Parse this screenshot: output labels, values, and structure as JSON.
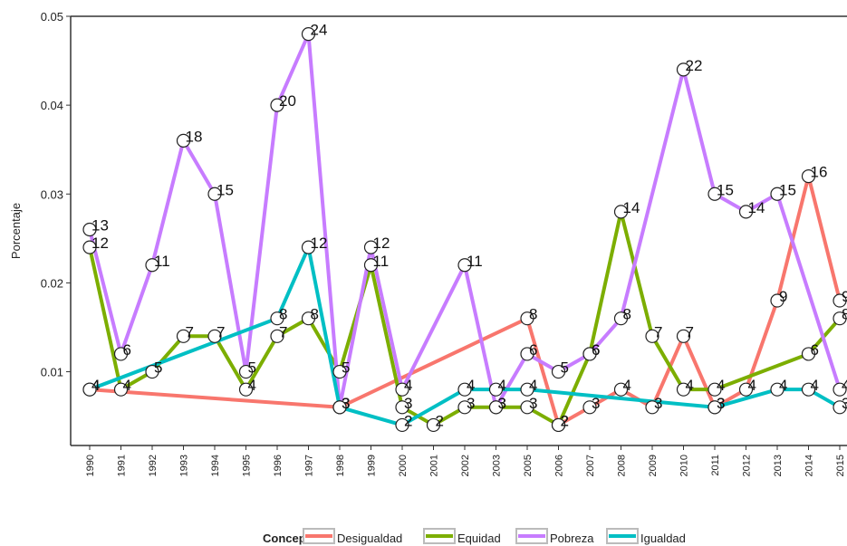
{
  "chart_data": {
    "type": "line",
    "y_label": "Porcentaje",
    "legend_title": "Concepto",
    "categories": [
      "1990",
      "1991",
      "1992",
      "1993",
      "1994",
      "1995",
      "1996",
      "1997",
      "1998",
      "1999",
      "2000",
      "2001",
      "2002",
      "2003",
      "2005",
      "2006",
      "2007",
      "2008",
      "2009",
      "2010",
      "2011",
      "2012",
      "2013",
      "2014",
      "2015"
    ],
    "ylim": [
      0.0017,
      0.05
    ],
    "yticks": [
      0.01,
      0.02,
      0.03,
      0.04,
      0.05
    ],
    "series": [
      {
        "name": "Desigualdad",
        "color": "#f8766d",
        "x": [
          "1990",
          "1998",
          "2005",
          "2006",
          "2007",
          "2008",
          "2009",
          "2010",
          "2011",
          "2012",
          "2013",
          "2014",
          "2015"
        ],
        "values": [
          0.008,
          0.006,
          0.016,
          0.004,
          0.006,
          0.008,
          0.006,
          0.014,
          0.006,
          0.008,
          0.018,
          0.032,
          0.018
        ],
        "counts": [
          4,
          3,
          8,
          2,
          3,
          4,
          3,
          7,
          3,
          4,
          9,
          16,
          9
        ]
      },
      {
        "name": "Equidad",
        "color": "#7cae00",
        "x": [
          "1990",
          "1991",
          "1992",
          "1993",
          "1994",
          "1995",
          "1996",
          "1997",
          "1998",
          "1999",
          "2000",
          "2001",
          "2002",
          "2003",
          "2005",
          "2006",
          "2007",
          "2008",
          "2009",
          "2010",
          "2011",
          "2014",
          "2015"
        ],
        "values": [
          0.024,
          0.008,
          0.01,
          0.014,
          0.014,
          0.008,
          0.014,
          0.016,
          0.01,
          0.022,
          0.006,
          0.004,
          0.006,
          0.006,
          0.006,
          0.004,
          0.012,
          0.028,
          0.014,
          0.008,
          0.008,
          0.012,
          0.016
        ],
        "counts": [
          12,
          4,
          5,
          7,
          7,
          4,
          7,
          8,
          5,
          11,
          3,
          2,
          3,
          3,
          3,
          2,
          6,
          14,
          7,
          4,
          4,
          6,
          8
        ]
      },
      {
        "name": "Pobreza",
        "color": "#c77cff",
        "x": [
          "1990",
          "1991",
          "1992",
          "1993",
          "1994",
          "1995",
          "1996",
          "1997",
          "1998",
          "1999",
          "2000",
          "2002",
          "2003",
          "2005",
          "2006",
          "2007",
          "2008",
          "2010",
          "2011",
          "2012",
          "2013",
          "2015"
        ],
        "values": [
          0.026,
          0.012,
          0.022,
          0.036,
          0.03,
          0.01,
          0.04,
          0.048,
          0.006,
          0.024,
          0.008,
          0.022,
          0.006,
          0.012,
          0.01,
          0.012,
          0.016,
          0.044,
          0.03,
          0.028,
          0.03,
          0.008
        ],
        "counts": [
          13,
          6,
          11,
          18,
          15,
          5,
          20,
          24,
          3,
          12,
          4,
          11,
          3,
          6,
          5,
          6,
          8,
          22,
          15,
          14,
          15,
          4
        ]
      },
      {
        "name": "Igualdad",
        "color": "#00bfc4",
        "x": [
          "1990",
          "1996",
          "1997",
          "1998",
          "2000",
          "2002",
          "2003",
          "2005",
          "2011",
          "2013",
          "2014",
          "2015"
        ],
        "values": [
          0.008,
          0.016,
          0.024,
          0.006,
          0.004,
          0.008,
          0.008,
          0.008,
          0.006,
          0.008,
          0.008,
          0.006
        ],
        "counts": [
          4,
          8,
          12,
          3,
          2,
          4,
          4,
          4,
          3,
          4,
          4,
          3
        ]
      }
    ]
  }
}
